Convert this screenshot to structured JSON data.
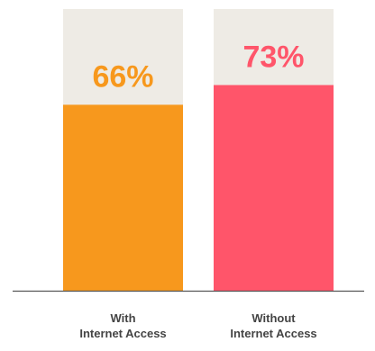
{
  "chart_data": {
    "type": "bar",
    "title": "",
    "xlabel": "",
    "ylabel": "",
    "ylim": [
      0,
      100
    ],
    "grid": false,
    "categories": [
      [
        "With",
        "Internet Access"
      ],
      [
        "Without",
        "Internet Access"
      ]
    ],
    "values": [
      66,
      73
    ],
    "value_labels": [
      "66%",
      "73%"
    ],
    "bar_colors": [
      "#F7981D",
      "#FF556A"
    ],
    "background_bar_color": "#EEEBE5",
    "axis_color": "#555555"
  }
}
